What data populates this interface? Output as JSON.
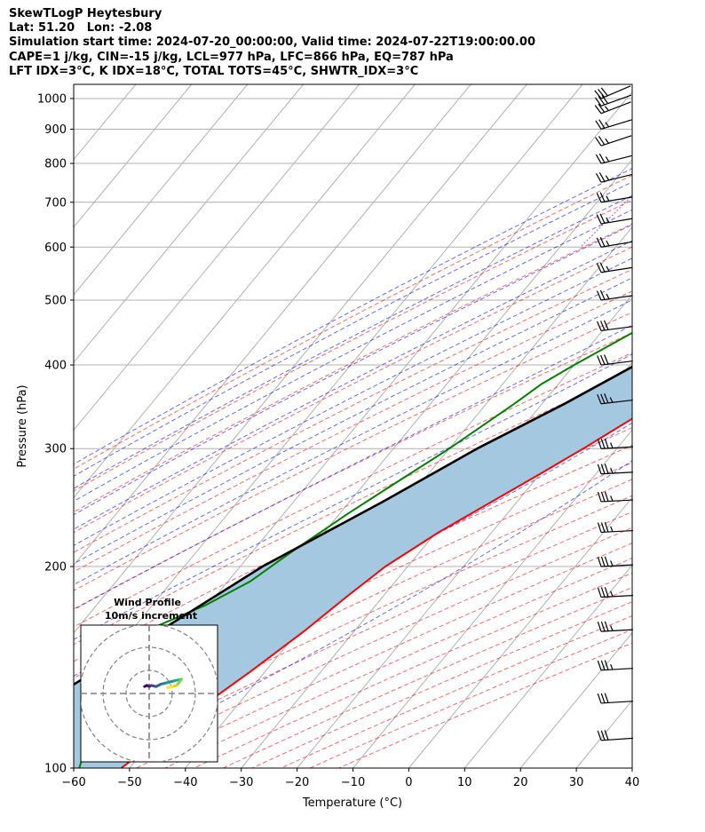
{
  "header": {
    "line1": "SkewTLogP Heytesbury",
    "line2": "Lat: 51.20   Lon: -2.08",
    "line3": "Simulation start time: 2024-07-20_00:00:00, Valid time: 2024-07-22T19:00:00.00",
    "line4": "CAPE=1 j/kg, CIN=-15 j/kg, LCL=977 hPa, LFC=866 hPa, EQ=787 hPa",
    "line5": "LFT IDX=3°C, K IDX=18°C, TOTAL TOTS=45°C, SHWTR_IDX=3°C"
  },
  "chart_data": {
    "type": "line",
    "xlabel": "Temperature (°C)",
    "ylabel": "Pressure (hPa)",
    "xlim": [
      -60,
      40
    ],
    "ylim": [
      1050,
      100
    ],
    "log_y": true,
    "skew": true,
    "grid": true,
    "x_ticks": [
      -60,
      -50,
      -40,
      -30,
      -20,
      -10,
      0,
      10,
      20,
      30,
      40
    ],
    "x_tick_labels": [
      "−60",
      "−50",
      "−40",
      "−30",
      "−20",
      "−10",
      "0",
      "10",
      "20",
      "30",
      "40"
    ],
    "y_ticks": [
      1000,
      900,
      800,
      700,
      600,
      500,
      400,
      300,
      200,
      100
    ],
    "y_tick_labels": [
      "1000",
      "900",
      "800",
      "700",
      "600",
      "500",
      "400",
      "300",
      "200",
      "100"
    ],
    "series": [
      {
        "role": "temperature",
        "color": "#ff0000",
        "points": [
          [
            1000,
            17.5
          ],
          [
            975,
            17.0
          ],
          [
            950,
            16.5
          ],
          [
            900,
            15.5
          ],
          [
            850,
            14.8
          ],
          [
            800,
            14.6
          ],
          [
            750,
            14.5
          ],
          [
            700,
            13.5
          ],
          [
            650,
            11.5
          ],
          [
            600,
            9.0
          ],
          [
            550,
            6.5
          ],
          [
            500,
            3.5
          ],
          [
            450,
            0.0
          ],
          [
            400,
            -4.0
          ],
          [
            350,
            -9.5
          ],
          [
            300,
            -16.0
          ],
          [
            275,
            -20.0
          ],
          [
            250,
            -24.5
          ],
          [
            225,
            -29.5
          ],
          [
            200,
            -34.0
          ],
          [
            180,
            -36.5
          ],
          [
            160,
            -39.0
          ],
          [
            140,
            -42.5
          ],
          [
            120,
            -47.0
          ],
          [
            110,
            -49.0
          ],
          [
            100,
            -51.5
          ]
        ]
      },
      {
        "role": "dewpoint",
        "color": "#008000",
        "points": [
          [
            1000,
            17.0
          ],
          [
            950,
            16.0
          ],
          [
            900,
            15.0
          ],
          [
            850,
            13.5
          ],
          [
            800,
            12.0
          ],
          [
            775,
            11.5
          ],
          [
            750,
            9.0
          ],
          [
            700,
            -5.0
          ],
          [
            650,
            -9.0
          ],
          [
            600,
            -10.5
          ],
          [
            550,
            -12.0
          ],
          [
            500,
            -17.0
          ],
          [
            450,
            -24.0
          ],
          [
            400,
            -30.0
          ],
          [
            375,
            -33.0
          ],
          [
            350,
            -35.0
          ],
          [
            300,
            -40.0
          ],
          [
            260,
            -45.5
          ],
          [
            240,
            -48.5
          ],
          [
            210,
            -53.0
          ],
          [
            190,
            -56.0
          ],
          [
            175,
            -60.5
          ],
          [
            160,
            -67.5
          ],
          [
            155,
            -71.0
          ],
          [
            140,
            -67.0
          ],
          [
            120,
            -64.0
          ],
          [
            100,
            -59.0
          ]
        ]
      },
      {
        "role": "parcel",
        "color": "#000000",
        "points": [
          [
            1000,
            18.0
          ],
          [
            977,
            16.5
          ],
          [
            950,
            15.8
          ],
          [
            900,
            14.6
          ],
          [
            850,
            13.0
          ],
          [
            800,
            11.2
          ],
          [
            750,
            9.0
          ],
          [
            700,
            6.5
          ],
          [
            650,
            3.7
          ],
          [
            600,
            0.4
          ],
          [
            550,
            -3.3
          ],
          [
            500,
            -7.7
          ],
          [
            450,
            -13.0
          ],
          [
            400,
            -19.0
          ],
          [
            350,
            -26.0
          ],
          [
            300,
            -35.0
          ],
          [
            250,
            -44.0
          ],
          [
            200,
            -56.0
          ],
          [
            150,
            -67.5
          ],
          [
            125,
            -75.0
          ],
          [
            100,
            -83.0
          ]
        ]
      }
    ],
    "cape_fill_color": "#a5c8e1",
    "wind_barbs": [
      {
        "p": 1000,
        "u": 14,
        "v": 6
      },
      {
        "p": 975,
        "u": 14,
        "v": 5
      },
      {
        "p": 950,
        "u": 13,
        "v": 5
      },
      {
        "p": 900,
        "u": 13,
        "v": 4
      },
      {
        "p": 850,
        "u": 12,
        "v": 4
      },
      {
        "p": 800,
        "u": 12,
        "v": 3
      },
      {
        "p": 750,
        "u": 12,
        "v": 3
      },
      {
        "p": 700,
        "u": 12,
        "v": 2
      },
      {
        "p": 650,
        "u": 12,
        "v": 2
      },
      {
        "p": 600,
        "u": 12,
        "v": 2
      },
      {
        "p": 550,
        "u": 13,
        "v": 2
      },
      {
        "p": 500,
        "u": 14,
        "v": 2
      },
      {
        "p": 450,
        "u": 15,
        "v": 2
      },
      {
        "p": 400,
        "u": 16,
        "v": 2
      },
      {
        "p": 350,
        "u": 17,
        "v": 2
      },
      {
        "p": 300,
        "u": 18,
        "v": 1
      },
      {
        "p": 275,
        "u": 18,
        "v": 1
      },
      {
        "p": 250,
        "u": 19,
        "v": 1
      },
      {
        "p": 225,
        "u": 19,
        "v": 1
      },
      {
        "p": 200,
        "u": 19,
        "v": 1
      },
      {
        "p": 180,
        "u": 19,
        "v": 1
      },
      {
        "p": 160,
        "u": 18,
        "v": 1
      },
      {
        "p": 140,
        "u": 17,
        "v": 1
      },
      {
        "p": 125,
        "u": 16,
        "v": 1
      },
      {
        "p": 110,
        "u": 15,
        "v": 1
      }
    ],
    "hodograph": {
      "title": "Wind Profile",
      "subtitle": "10m/s increment",
      "rings_ms": [
        10,
        20,
        30
      ],
      "points": [
        [
          -2,
          3
        ],
        [
          -1,
          3.5
        ],
        [
          0,
          3
        ],
        [
          1,
          3.5
        ],
        [
          3,
          3
        ],
        [
          5,
          4
        ],
        [
          7,
          4.5
        ],
        [
          9,
          5
        ],
        [
          11,
          5.5
        ],
        [
          13,
          6
        ],
        [
          14,
          6.2
        ],
        [
          12,
          3.5
        ],
        [
          10,
          3
        ],
        [
          8,
          2.5
        ]
      ]
    }
  }
}
